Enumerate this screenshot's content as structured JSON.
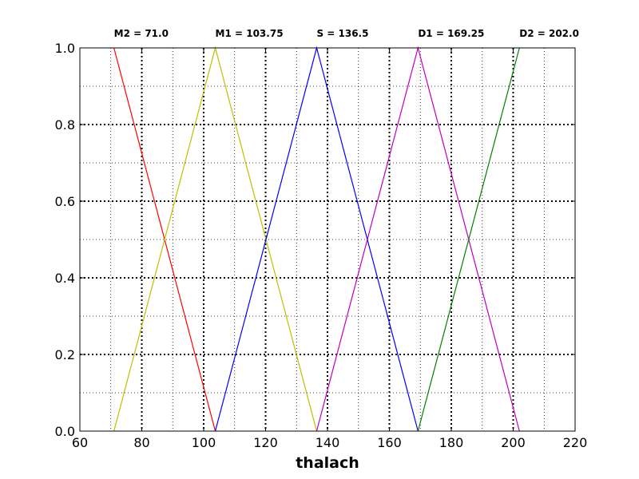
{
  "chart_data": {
    "type": "line",
    "title": "",
    "xlabel": "thalach",
    "ylabel": "",
    "xlim": [
      60,
      220
    ],
    "ylim": [
      0,
      1
    ],
    "x_ticks": [
      60,
      80,
      100,
      120,
      140,
      160,
      180,
      200,
      220
    ],
    "x_tick_labels": [
      "60",
      "80",
      "100",
      "120",
      "140",
      "160",
      "180",
      "200",
      "220"
    ],
    "y_ticks": [
      0,
      0.2,
      0.4,
      0.6,
      0.8,
      1.0
    ],
    "y_tick_labels": [
      "0.0",
      "0.2",
      "0.4",
      "0.6",
      "0.8",
      "1.0"
    ],
    "grid": {
      "major": true,
      "minor": true,
      "style": "dotted"
    },
    "annotations": [
      {
        "text": "M2 = 71.0",
        "x": 71.0
      },
      {
        "text": "M1 = 103.75",
        "x": 103.75
      },
      {
        "text": "S = 136.5",
        "x": 136.5
      },
      {
        "text": "D1 = 169.25",
        "x": 169.25
      },
      {
        "text": "D2 = 202.0",
        "x": 202.0
      }
    ],
    "series": [
      {
        "color": "#ff0000",
        "x": [
          71.0,
          103.75
        ],
        "y": [
          1,
          0
        ]
      },
      {
        "color": "#bfbf00",
        "x": [
          71.0,
          103.75,
          136.5
        ],
        "y": [
          0,
          1,
          0
        ]
      },
      {
        "color": "#0000ff",
        "x": [
          103.75,
          136.5,
          169.25
        ],
        "y": [
          0,
          1,
          0
        ]
      },
      {
        "color": "#bf00bf",
        "x": [
          136.5,
          169.25,
          202.0
        ],
        "y": [
          0,
          1,
          0
        ]
      },
      {
        "color": "#008000",
        "x": [
          169.25,
          202.0
        ],
        "y": [
          0,
          1
        ]
      }
    ]
  }
}
